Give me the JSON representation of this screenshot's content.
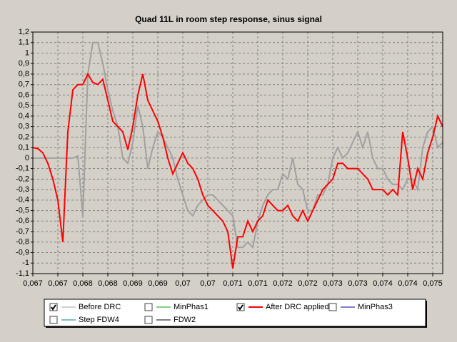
{
  "chart_data": {
    "type": "line",
    "title": "Quad 11L in room step response, sinus signal",
    "x": [
      0.067,
      0.0671,
      0.0672,
      0.0673,
      0.0674,
      0.0675,
      0.0676,
      0.0677,
      0.0678,
      0.0679,
      0.068,
      0.0681,
      0.0682,
      0.0683,
      0.0684,
      0.0685,
      0.0686,
      0.0687,
      0.0688,
      0.0689,
      0.069,
      0.0691,
      0.0692,
      0.0693,
      0.0694,
      0.0695,
      0.0696,
      0.0697,
      0.0698,
      0.0699,
      0.07,
      0.0701,
      0.0702,
      0.0703,
      0.0704,
      0.0705,
      0.0706,
      0.0707,
      0.0708,
      0.0709,
      0.071,
      0.0711,
      0.0712,
      0.0713,
      0.0714,
      0.0715,
      0.0716,
      0.0717,
      0.0718,
      0.0719,
      0.072,
      0.0721,
      0.0722,
      0.0723,
      0.0724,
      0.0725,
      0.0726,
      0.0727,
      0.0728,
      0.0729,
      0.073,
      0.0731,
      0.0732,
      0.0733,
      0.0734,
      0.0735,
      0.0736,
      0.0737,
      0.0738,
      0.0739,
      0.074,
      0.0741,
      0.0742,
      0.0743,
      0.0744,
      0.0745,
      0.0746,
      0.0747,
      0.0748,
      0.0749,
      0.075,
      0.0751,
      0.0752
    ],
    "series": [
      {
        "name": "Before DRC",
        "color": "#a0a0a0",
        "visible": true,
        "values": [
          0,
          0,
          0,
          0,
          0,
          0,
          0,
          0,
          0,
          0.02,
          -0.55,
          0.8,
          1.1,
          1.1,
          0.9,
          0.65,
          0.45,
          0.3,
          0,
          -0.05,
          0.15,
          0.5,
          0.3,
          -0.1,
          0.1,
          0.25,
          0.2,
          0.1,
          0,
          -0.2,
          -0.35,
          -0.5,
          -0.55,
          -0.45,
          -0.4,
          -0.35,
          -0.35,
          -0.4,
          -0.45,
          -0.5,
          -0.55,
          -0.85,
          -0.85,
          -0.8,
          -0.85,
          -0.6,
          -0.45,
          -0.35,
          -0.3,
          -0.3,
          -0.15,
          -0.2,
          0,
          -0.25,
          -0.3,
          -0.5,
          -0.5,
          -0.35,
          -0.35,
          -0.25,
          0,
          0.1,
          0,
          0.05,
          0.15,
          0.25,
          0.1,
          0.25,
          0,
          -0.1,
          -0.1,
          -0.2,
          -0.25,
          -0.25,
          -0.3,
          -0.2,
          -0.2,
          -0.3,
          0.1,
          0.25,
          0.3,
          0.1,
          0.15
        ]
      },
      {
        "name": "MinPhas1",
        "color": "#00a000",
        "visible": false
      },
      {
        "name": "After DRC applied",
        "color": "#ff0000",
        "visible": true,
        "values": [
          0.1,
          0.09,
          0.05,
          -0.05,
          -0.2,
          -0.4,
          -0.8,
          0.25,
          0.65,
          0.7,
          0.7,
          0.8,
          0.72,
          0.7,
          0.75,
          0.55,
          0.35,
          0.3,
          0.25,
          0.08,
          0.3,
          0.6,
          0.8,
          0.55,
          0.45,
          0.35,
          0.2,
          0,
          -0.15,
          -0.05,
          0.05,
          -0.05,
          -0.1,
          -0.2,
          -0.35,
          -0.45,
          -0.5,
          -0.55,
          -0.6,
          -0.7,
          -1.05,
          -0.75,
          -0.75,
          -0.6,
          -0.7,
          -0.6,
          -0.55,
          -0.4,
          -0.45,
          -0.5,
          -0.5,
          -0.45,
          -0.55,
          -0.6,
          -0.5,
          -0.6,
          -0.5,
          -0.4,
          -0.3,
          -0.25,
          -0.2,
          -0.05,
          -0.05,
          -0.1,
          -0.1,
          -0.1,
          -0.15,
          -0.2,
          -0.3,
          -0.3,
          -0.3,
          -0.35,
          -0.3,
          -0.35,
          0.25,
          0,
          -0.3,
          -0.1,
          -0.2,
          0.05,
          0.2,
          0.4,
          0.3
        ]
      },
      {
        "name": "MinPhas3",
        "color": "#0000a0",
        "visible": false
      },
      {
        "name": "Step FDW4",
        "color": "#008080",
        "visible": false
      },
      {
        "name": "FDW2",
        "color": "#000000",
        "visible": false
      }
    ],
    "xlim": [
      0.067,
      0.0752
    ],
    "xticks": [
      {
        "value": 0.067,
        "label": "0,067"
      },
      {
        "value": 0.0675,
        "label": "0,067"
      },
      {
        "value": 0.068,
        "label": "0,068"
      },
      {
        "value": 0.0685,
        "label": "0,068"
      },
      {
        "value": 0.069,
        "label": "0,069"
      },
      {
        "value": 0.0695,
        "label": "0,069"
      },
      {
        "value": 0.07,
        "label": "0,07"
      },
      {
        "value": 0.0705,
        "label": "0,07"
      },
      {
        "value": 0.071,
        "label": "0,071"
      },
      {
        "value": 0.0715,
        "label": "0,071"
      },
      {
        "value": 0.072,
        "label": "0,072"
      },
      {
        "value": 0.0725,
        "label": "0,072"
      },
      {
        "value": 0.073,
        "label": "0,073"
      },
      {
        "value": 0.0735,
        "label": "0,073"
      },
      {
        "value": 0.074,
        "label": "0,074"
      },
      {
        "value": 0.0745,
        "label": "0,074"
      },
      {
        "value": 0.075,
        "label": "0,075"
      }
    ],
    "ylim": [
      -1.1,
      1.2
    ],
    "yticks": [
      {
        "value": -1.1,
        "label": "-1,1"
      },
      -1,
      {
        "value": -0.9,
        "label": "-0,9"
      },
      {
        "value": -0.8,
        "label": "-0,8"
      },
      {
        "value": -0.7,
        "label": "-0,7"
      },
      {
        "value": -0.6,
        "label": "-0,6"
      },
      {
        "value": -0.5,
        "label": "-0,5"
      },
      {
        "value": -0.4,
        "label": "-0,4"
      },
      {
        "value": -0.3,
        "label": "-0,3"
      },
      {
        "value": -0.2,
        "label": "-0,2"
      },
      {
        "value": -0.1,
        "label": "-0,1"
      },
      0,
      {
        "value": 0.1,
        "label": "0,1"
      },
      {
        "value": 0.2,
        "label": "0,2"
      },
      {
        "value": 0.3,
        "label": "0,3"
      },
      {
        "value": 0.4,
        "label": "0,4"
      },
      {
        "value": 0.5,
        "label": "0,5"
      },
      {
        "value": 0.6,
        "label": "0,6"
      },
      {
        "value": 0.7,
        "label": "0,7"
      },
      {
        "value": 0.8,
        "label": "0,8"
      },
      {
        "value": 0.9,
        "label": "0,9"
      },
      1,
      {
        "value": 1.1,
        "label": "1,1"
      },
      {
        "value": 1.2,
        "label": "1,2"
      }
    ],
    "grid": true
  }
}
